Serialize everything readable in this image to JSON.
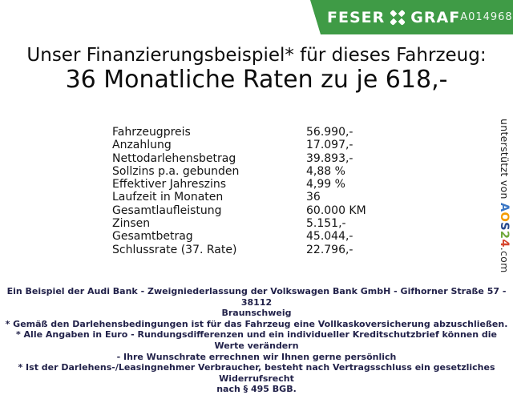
{
  "header": {
    "brand_left": "FESER",
    "brand_right": "GRAF",
    "brand_icon": "clover-x-icon",
    "vehicle_code": "A014968",
    "bar_color": "#3f9b46"
  },
  "title": {
    "line1": "Unser Finanzierungsbeispiel* für dieses Fahrzeug:",
    "line2": "36 Monatliche Raten zu je 618,-"
  },
  "financing_table": {
    "rows": [
      {
        "label": "Fahrzeugpreis",
        "value": "56.990,-"
      },
      {
        "label": "Anzahlung",
        "value": "17.097,-"
      },
      {
        "label": "Nettodarlehensbetrag",
        "value": "39.893,-"
      },
      {
        "label": "Sollzins p.a. gebunden",
        "value": "4,88 %"
      },
      {
        "label": "Effektiver Jahreszins",
        "value": "4,99 %"
      },
      {
        "label": "Laufzeit in Monaten",
        "value": "36"
      },
      {
        "label": "Gesamtlaufleistung",
        "value": "60.000 KM"
      },
      {
        "label": "Zinsen",
        "value": "5.151,-"
      },
      {
        "label": "Gesamtbetrag",
        "value": "45.044,-"
      },
      {
        "label": "Schlussrate (37. Rate)",
        "value": "22.796,-"
      }
    ]
  },
  "supported_by": {
    "prefix": "unterstützt von ",
    "brand_letters": [
      {
        "char": "A",
        "color": "#3a76c4"
      },
      {
        "char": "O",
        "color": "#f39b00"
      },
      {
        "char": "S",
        "color": "#2a4a8c"
      },
      {
        "char": "2",
        "color": "#70a83b"
      },
      {
        "char": "4",
        "color": "#d6452e"
      }
    ],
    "suffix": ".com"
  },
  "footer": {
    "lines": [
      "Ein Beispiel der Audi Bank - Zweigniederlassung der Volkswagen Bank GmbH - Gifhorner Straße 57 - 38112",
      "Braunschweig",
      "* Gemäß den Darlehensbedingungen ist für das Fahrzeug eine Vollkaskoversicherung abzuschließen.",
      "* Alle Angaben in Euro - Rundungsdifferenzen und ein individueller Kreditschutzbrief können die Werte verändern",
      "- Ihre Wunschrate errechnen wir Ihnen gerne persönlich",
      "* Ist der Darlehens-/Leasingnehmer Verbraucher, besteht nach Vertragsschluss ein gesetzliches Widerrufsrecht",
      "nach § 495 BGB."
    ]
  }
}
